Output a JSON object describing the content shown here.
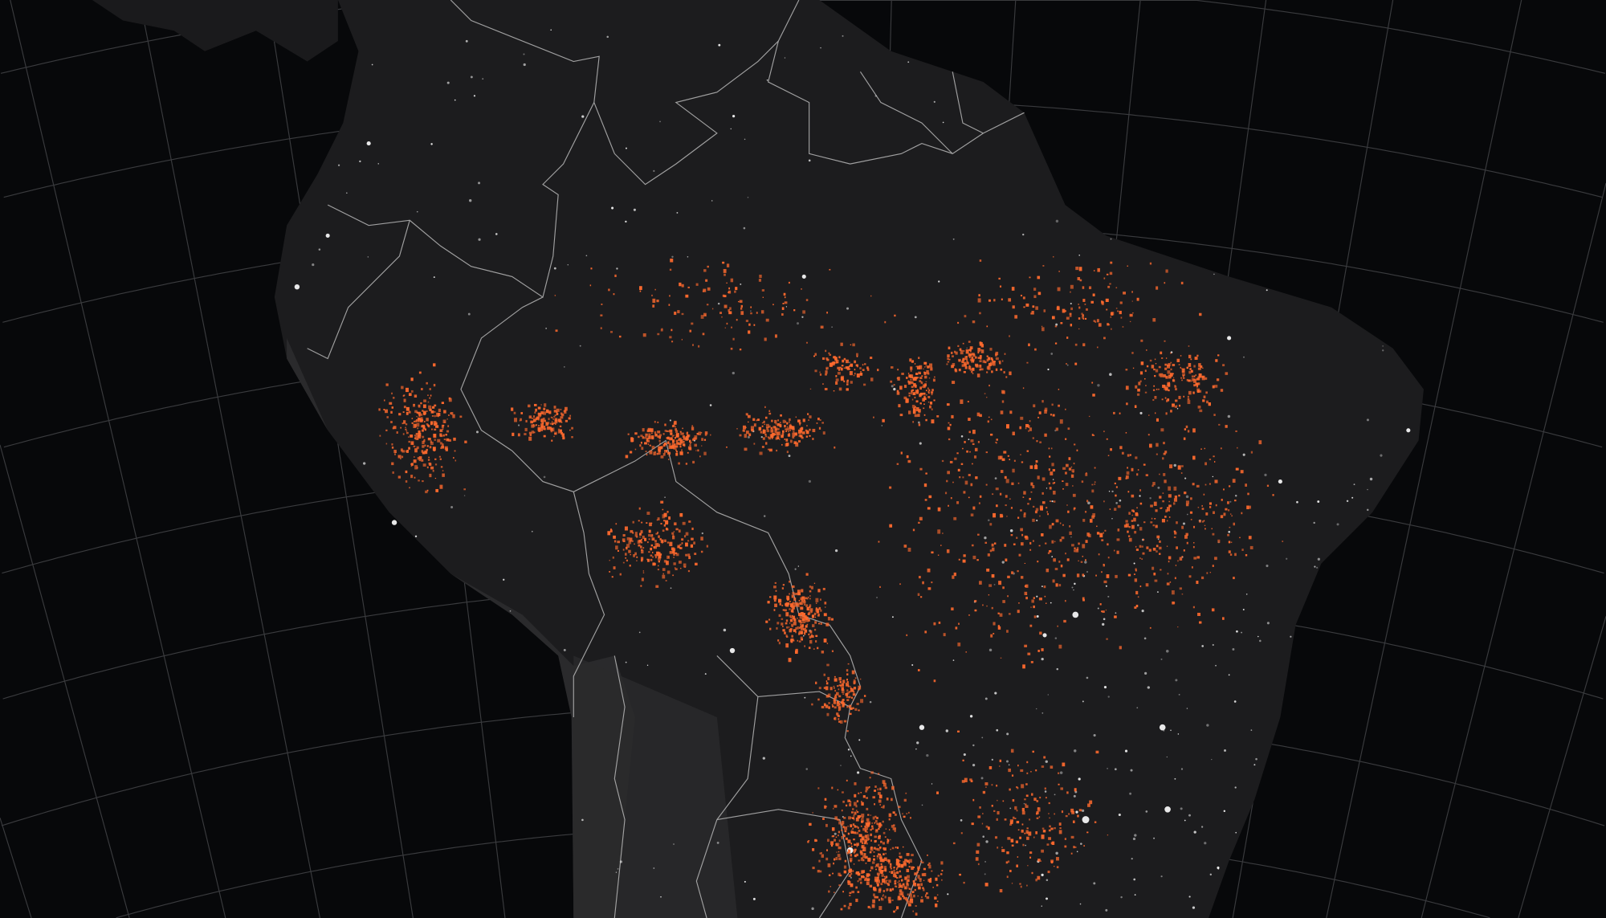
{
  "map": {
    "colors": {
      "ocean": "#07080a",
      "land": "#1c1c1e",
      "land_highlands": "#2e2e30",
      "borders": "#b8b8b8",
      "graticule": "#3a3b3e",
      "fires": "#ff6a2e",
      "city_lights": "#ffffff"
    },
    "layers": [
      "graticule",
      "land",
      "country-borders",
      "city-lights",
      "active-fires"
    ]
  }
}
